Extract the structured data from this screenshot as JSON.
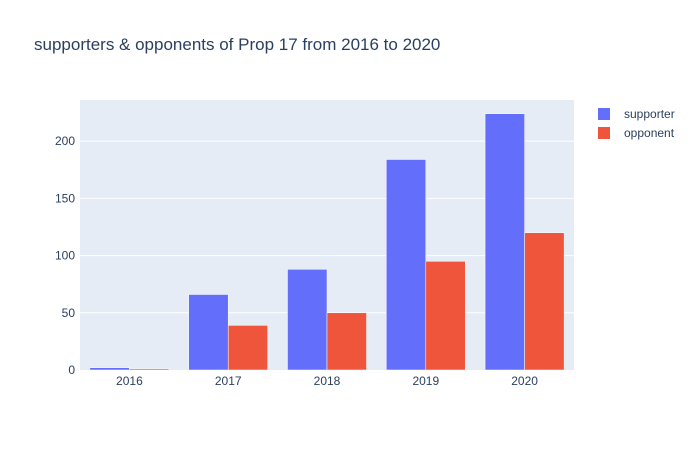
{
  "chart_data": {
    "type": "bar",
    "title": "supporters & opponents of Prop 17 from 2016 to 2020",
    "xlabel": "",
    "ylabel": "",
    "categories": [
      "2016",
      "2017",
      "2018",
      "2019",
      "2020"
    ],
    "series": [
      {
        "name": "supporter",
        "values": [
          2,
          66,
          88,
          184,
          224
        ],
        "color": "#636efa"
      },
      {
        "name": "opponent",
        "values": [
          1,
          39,
          50,
          95,
          120
        ],
        "color": "#ef553b"
      }
    ],
    "ylim": [
      0,
      236
    ],
    "yticks": [
      0,
      50,
      100,
      150,
      200
    ],
    "grid": true,
    "legend_position": "top-right",
    "plot_background": "#e5ecf6"
  }
}
